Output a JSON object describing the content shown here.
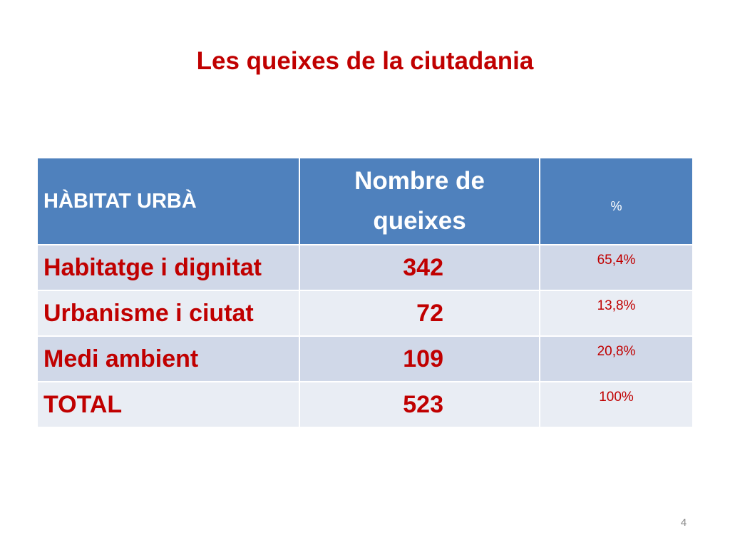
{
  "title": "Les queixes de la ciutadania",
  "table": {
    "header": {
      "category": "HÀBITAT URBÀ",
      "count_line1": "Nombre de",
      "count_line2": "queixes",
      "percent": "%"
    },
    "rows": [
      {
        "category": "Habitatge i dignitat",
        "count": "342",
        "percent": "65,4%"
      },
      {
        "category": "Urbanisme i ciutat",
        "count": "72",
        "percent": "13,8%"
      },
      {
        "category": "Medi ambient",
        "count": "109",
        "percent": "20,8%"
      },
      {
        "category": "TOTAL",
        "count": "523",
        "percent": "100%"
      }
    ]
  },
  "page_number": "4",
  "colors": {
    "accent": "#c00000",
    "header_bg": "#4f81bd",
    "row_dark": "#d0d8e8",
    "row_light": "#e9edf4"
  }
}
